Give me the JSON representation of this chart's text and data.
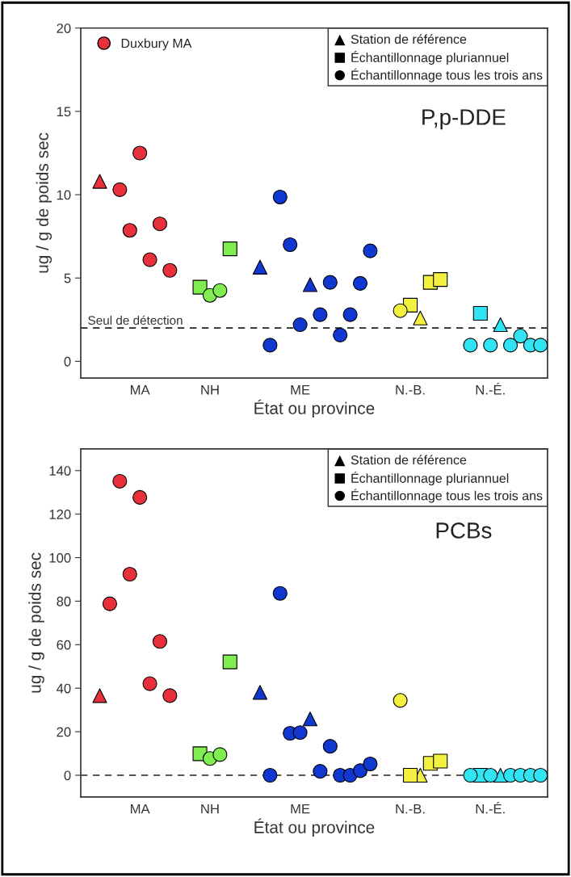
{
  "chart_data": [
    {
      "type": "scatter",
      "title": "P,p-DDE",
      "xlabel": "État ou province",
      "ylabel": "ug / g de poids sec",
      "categories": [
        null,
        null,
        null,
        null,
        "MA",
        null,
        null,
        null,
        null,
        null,
        null,
        "NH",
        null,
        null,
        null,
        null,
        null,
        null,
        null,
        null,
        "ME",
        null,
        null,
        null,
        null,
        null,
        null,
        null,
        null,
        null,
        null,
        "N.-B.",
        null,
        null,
        null,
        null,
        null,
        null,
        null,
        "N.-É.",
        null,
        null,
        null,
        null,
        null
      ],
      "ylim": [
        -1,
        20
      ],
      "yticks": [
        0,
        5,
        10,
        15,
        20
      ],
      "legend": "top left",
      "grid": false,
      "annotations": [
        "Station de référence",
        "Échantillonnage pluriannuel",
        "Échantillonnage tous les trois ans"
      ],
      "ref_lines": [
        {
          "axis": "y",
          "value": 2,
          "label": "Seul de détection",
          "line_style": "dashed"
        }
      ],
      "series": [
        {
          "marker": "triangle",
          "values": [
            10.8,
            null,
            null,
            null,
            null,
            null,
            null,
            null,
            null,
            null,
            null,
            null,
            null,
            null,
            null,
            null,
            5.65,
            null,
            null,
            null,
            null,
            4.6,
            null,
            null,
            null,
            null,
            null,
            null,
            null,
            null,
            null,
            null,
            2.6,
            null,
            null,
            null,
            null,
            null,
            null,
            null,
            2.2,
            null,
            null,
            null,
            null
          ],
          "colors": [
            "#e8303a",
            null,
            null,
            null,
            null,
            null,
            null,
            null,
            null,
            null,
            null,
            null,
            null,
            null,
            null,
            null,
            "#1038d0",
            null,
            null,
            null,
            null,
            "#1038d0",
            null,
            null,
            null,
            null,
            null,
            null,
            null,
            null,
            null,
            null,
            "#f4f040",
            null,
            null,
            null,
            null,
            null,
            null,
            null,
            "#30e4f4",
            null,
            null,
            null,
            null
          ]
        },
        {
          "marker": "square",
          "values": [
            null,
            null,
            null,
            null,
            null,
            null,
            null,
            null,
            null,
            null,
            4.45,
            null,
            null,
            6.75,
            null,
            null,
            null,
            null,
            null,
            null,
            null,
            null,
            null,
            null,
            null,
            null,
            null,
            null,
            null,
            null,
            null,
            3.37,
            null,
            4.74,
            4.91,
            null,
            null,
            null,
            2.88,
            null,
            null,
            null,
            null,
            null,
            null
          ],
          "colors": [
            null,
            null,
            null,
            null,
            null,
            null,
            null,
            null,
            null,
            null,
            "#80ee50",
            null,
            null,
            "#80ee50",
            null,
            null,
            null,
            null,
            null,
            null,
            null,
            null,
            null,
            null,
            null,
            null,
            null,
            null,
            null,
            null,
            null,
            "#f4f040",
            null,
            "#f4f040",
            "#f4f040",
            null,
            null,
            null,
            "#30e4f4",
            null,
            null,
            null,
            null,
            null,
            null
          ]
        },
        {
          "marker": "circle",
          "values": [
            null,
            null,
            null,
            null,
            null,
            null,
            null,
            null,
            null,
            null,
            null,
            3.96,
            4.25,
            null,
            null,
            null,
            null,
            0.97,
            9.86,
            7.0,
            2.2,
            null,
            2.8,
            4.74,
            1.58,
            2.8,
            4.68,
            6.63,
            null,
            null,
            3.04,
            null,
            null,
            null,
            null,
            null,
            null,
            0.97,
            null,
            0.97,
            null,
            0.97,
            1.52,
            0.97,
            0.97
          ],
          "colors": [
            null,
            null,
            null,
            null,
            null,
            null,
            null,
            null,
            null,
            null,
            null,
            "#80ee50",
            "#80ee50",
            null,
            null,
            null,
            null,
            "#1038d0",
            "#1038d0",
            "#1038d0",
            "#1038d0",
            null,
            "#1038d0",
            "#1038d0",
            "#1038d0",
            "#1038d0",
            "#1038d0",
            "#1038d0",
            null,
            null,
            "#f4f040",
            null,
            null,
            null,
            null,
            null,
            null,
            "#30e4f4",
            null,
            "#30e4f4",
            null,
            "#30e4f4",
            "#30e4f4",
            "#30e4f4",
            "#30e4f4"
          ]
        },
        {
          "name": "Duxbury MA",
          "marker": "circle",
          "color": "#e8303a",
          "values": [
            null,
            null,
            10.3,
            7.86,
            12.5,
            6.1,
            8.25,
            5.46,
            null,
            null,
            null,
            null,
            null,
            null,
            null,
            null,
            null,
            null,
            null,
            null,
            null,
            null,
            null,
            null,
            null,
            null,
            null,
            null,
            null,
            null,
            null,
            null,
            null,
            null,
            null,
            null,
            null,
            null,
            null,
            null,
            null,
            null,
            null,
            null,
            null
          ]
        }
      ]
    },
    {
      "type": "scatter",
      "title": "PCBs",
      "xlabel": "État ou province",
      "ylabel": "ug / g de poids sec",
      "categories": [
        null,
        null,
        null,
        null,
        "MA",
        null,
        null,
        null,
        null,
        null,
        null,
        "NH",
        null,
        null,
        null,
        null,
        null,
        null,
        null,
        null,
        "ME",
        null,
        null,
        null,
        null,
        null,
        null,
        null,
        null,
        null,
        null,
        "N.-B.",
        null,
        null,
        null,
        null,
        null,
        null,
        null,
        "N.-É.",
        null,
        null,
        null,
        null,
        null
      ],
      "ylim": [
        -10,
        150
      ],
      "yticks": [
        0,
        20,
        40,
        60,
        80,
        100,
        120,
        140
      ],
      "grid": false,
      "annotations": [
        "Station de référence",
        "Échantillonnage pluriannuel",
        "Échantillonnage tous les trois ans"
      ],
      "ref_lines": [
        {
          "axis": "y",
          "value": 0,
          "line_style": "dashed"
        }
      ],
      "series": [
        {
          "marker": "triangle",
          "values": [
            36.6,
            null,
            null,
            null,
            null,
            null,
            null,
            null,
            null,
            null,
            null,
            null,
            null,
            null,
            null,
            null,
            38.1,
            null,
            null,
            null,
            null,
            25.9,
            null,
            null,
            null,
            null,
            null,
            null,
            null,
            null,
            null,
            null,
            0,
            null,
            null,
            null,
            null,
            null,
            null,
            null,
            0,
            null,
            null,
            null,
            null
          ],
          "colors": [
            "#e8303a",
            null,
            null,
            null,
            null,
            null,
            null,
            null,
            null,
            null,
            null,
            null,
            null,
            null,
            null,
            null,
            "#1038d0",
            null,
            null,
            null,
            null,
            "#1038d0",
            null,
            null,
            null,
            null,
            null,
            null,
            null,
            null,
            null,
            null,
            "#f4f040",
            null,
            null,
            null,
            null,
            null,
            null,
            null,
            "#30e4f4",
            null,
            null,
            null,
            null
          ]
        },
        {
          "marker": "square",
          "values": [
            null,
            null,
            null,
            null,
            null,
            null,
            null,
            null,
            null,
            null,
            9.9,
            null,
            null,
            52.1,
            null,
            null,
            null,
            null,
            null,
            null,
            null,
            null,
            null,
            null,
            null,
            null,
            null,
            null,
            null,
            null,
            null,
            0,
            null,
            5.5,
            6.5,
            null,
            null,
            null,
            0,
            null,
            null,
            null,
            null,
            null,
            null
          ],
          "colors": [
            null,
            null,
            null,
            null,
            null,
            null,
            null,
            null,
            null,
            null,
            "#80ee50",
            null,
            null,
            "#80ee50",
            null,
            null,
            null,
            null,
            null,
            null,
            null,
            null,
            null,
            null,
            null,
            null,
            null,
            null,
            null,
            null,
            null,
            "#f4f040",
            null,
            "#f4f040",
            "#f4f040",
            null,
            null,
            null,
            "#30e4f4",
            null,
            null,
            null,
            null,
            null,
            null
          ]
        },
        {
          "marker": "circle",
          "values": [
            null,
            78.8,
            135.1,
            92.4,
            127.7,
            42.1,
            61.5,
            36.6,
            null,
            null,
            null,
            7.7,
            9.5,
            null,
            null,
            null,
            null,
            0,
            83.6,
            19.3,
            19.6,
            null,
            1.8,
            13.3,
            0,
            0,
            2.1,
            5.2,
            null,
            null,
            34.4,
            null,
            null,
            null,
            null,
            null,
            null,
            0,
            null,
            0,
            null,
            0,
            0,
            0,
            0
          ],
          "colors": [
            null,
            "#e8303a",
            "#e8303a",
            "#e8303a",
            "#e8303a",
            "#e8303a",
            "#e8303a",
            "#e8303a",
            null,
            null,
            null,
            "#80ee50",
            "#80ee50",
            null,
            null,
            null,
            null,
            "#1038d0",
            "#1038d0",
            "#1038d0",
            "#1038d0",
            null,
            "#1038d0",
            "#1038d0",
            "#1038d0",
            "#1038d0",
            "#1038d0",
            "#1038d0",
            null,
            null,
            "#f4f040",
            null,
            null,
            null,
            null,
            null,
            null,
            "#30e4f4",
            null,
            "#30e4f4",
            null,
            "#30e4f4",
            "#30e4f4",
            "#30e4f4",
            "#30e4f4"
          ]
        }
      ]
    }
  ]
}
